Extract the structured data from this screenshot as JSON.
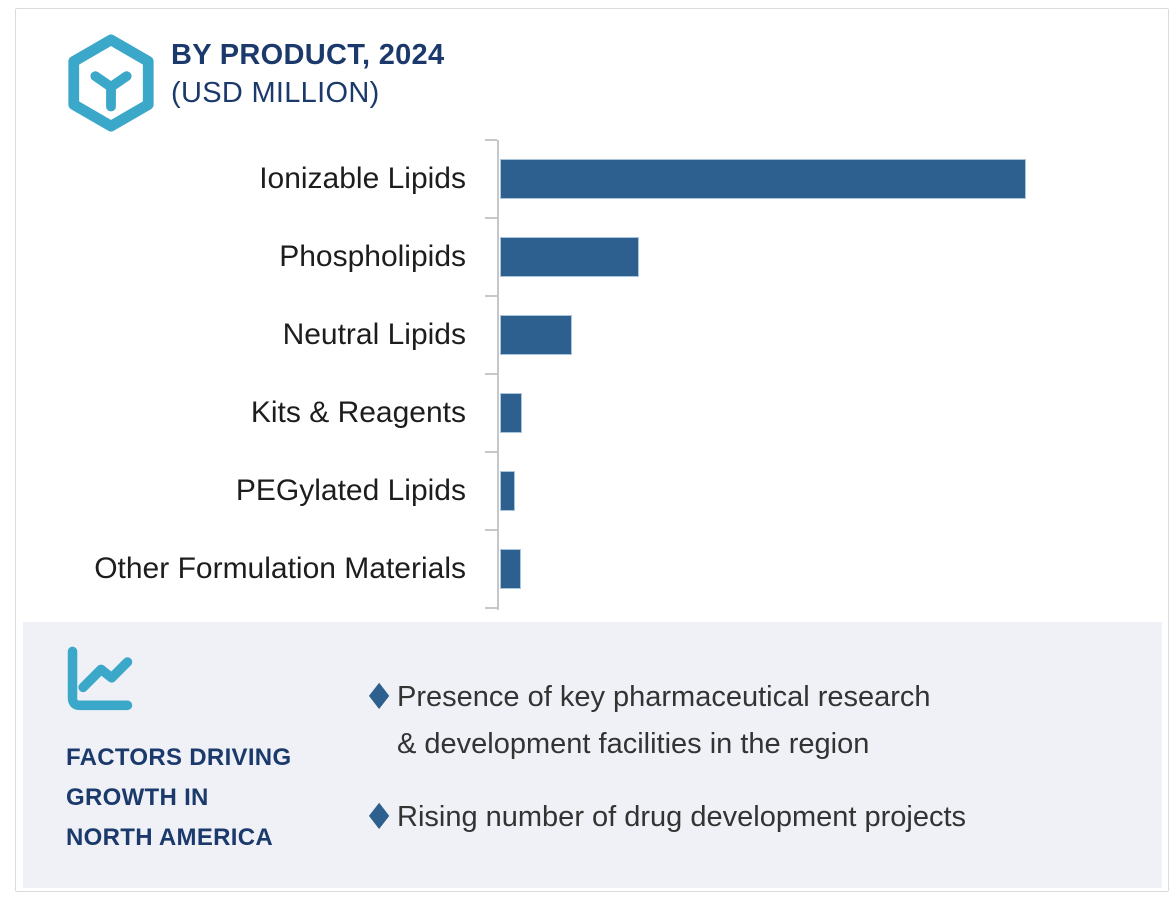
{
  "header": {
    "title": "BY PRODUCT, 2024",
    "subtitle": "(USD MILLION)",
    "icon": "hexagon-box-icon"
  },
  "chart_data": {
    "type": "bar",
    "orientation": "horizontal",
    "title": "BY PRODUCT, 2024",
    "unit_label": "USD MILLION",
    "categories": [
      "Ionizable Lipids",
      "Phospholipids",
      "Neutral Lipids",
      "Kits & Reagents",
      "PEGylated Lipids",
      "Other Formulation Materials"
    ],
    "values": [
      100,
      26.4,
      13.7,
      4.2,
      2.9,
      4.0
    ],
    "values_unit": "percent of largest bar (numeric axis not labeled in image)",
    "xlim": [
      0,
      100
    ],
    "grid": false,
    "legend": false,
    "bar_color": "#2d5f8f",
    "axis_tick_count": 7
  },
  "factors": {
    "icon": "line-chart-icon",
    "heading_lines": [
      "FACTORS DRIVING",
      "GROWTH IN",
      "NORTH AMERICA"
    ],
    "bullet_icon": "diamond-bullet",
    "items": [
      "Presence of key pharmaceutical research\n& development facilities in the region",
      "Rising number of drug development projects"
    ]
  },
  "colors": {
    "navy": "#1b3a6b",
    "bar_blue": "#2d5f8f",
    "cyan": "#3ba7c9",
    "panel_bg": "#eff1f6",
    "axis_gray": "#c5c7cb",
    "label_black": "#1d1d1d",
    "body_text": "#333333",
    "card_border": "#d9dbe0"
  }
}
